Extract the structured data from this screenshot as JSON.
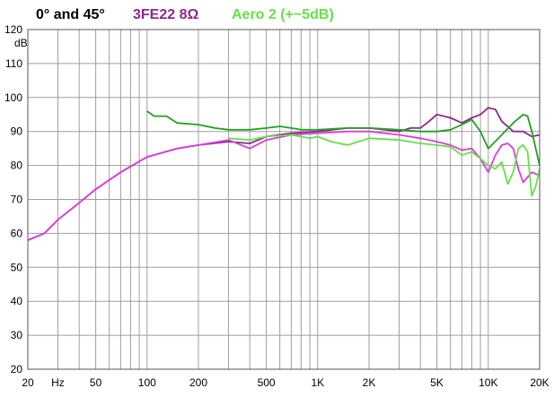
{
  "chart_data": {
    "type": "line",
    "title": "0° and 45°",
    "ylabel": "dB",
    "xscale": "log",
    "xlim": [
      20,
      20000
    ],
    "ylim": [
      20,
      120
    ],
    "grid": true,
    "legend": "top",
    "x_tick_labels": [
      {
        "value": 20,
        "label": "20"
      },
      {
        "value": 30,
        "label": "Hz"
      },
      {
        "value": 50,
        "label": "50"
      },
      {
        "value": 100,
        "label": "100"
      },
      {
        "value": 200,
        "label": "200"
      },
      {
        "value": 500,
        "label": "500"
      },
      {
        "value": 1000,
        "label": "1K"
      },
      {
        "value": 2000,
        "label": "2K"
      },
      {
        "value": 5000,
        "label": "5K"
      },
      {
        "value": 10000,
        "label": "10K"
      },
      {
        "value": 20000,
        "label": "20K"
      }
    ],
    "y_ticks": [
      20,
      30,
      40,
      50,
      60,
      70,
      80,
      90,
      100,
      110,
      120
    ],
    "series": [
      {
        "name": "3FE22 8Ω",
        "color": "#8b2a8a",
        "points": [
          [
            20,
            58
          ],
          [
            25,
            60
          ],
          [
            30,
            64
          ],
          [
            40,
            69
          ],
          [
            50,
            73
          ],
          [
            70,
            78
          ],
          [
            100,
            82.5
          ],
          [
            150,
            85
          ],
          [
            200,
            86
          ],
          [
            300,
            87
          ],
          [
            400,
            86.5
          ],
          [
            500,
            88.5
          ],
          [
            700,
            89.5
          ],
          [
            1000,
            90
          ],
          [
            1500,
            91
          ],
          [
            2000,
            91
          ],
          [
            2500,
            90.5
          ],
          [
            3000,
            90
          ],
          [
            3500,
            91
          ],
          [
            4000,
            91
          ],
          [
            4500,
            93
          ],
          [
            5000,
            95
          ],
          [
            6000,
            94
          ],
          [
            7000,
            92.5
          ],
          [
            8000,
            94
          ],
          [
            9000,
            95
          ],
          [
            10000,
            97
          ],
          [
            11000,
            96.5
          ],
          [
            12000,
            93
          ],
          [
            14000,
            90
          ],
          [
            16000,
            90
          ],
          [
            18000,
            88.5
          ],
          [
            20000,
            89
          ]
        ]
      },
      {
        "name": "3FE22 8Ω",
        "color": "#dc3cdc",
        "points": [
          [
            20,
            58
          ],
          [
            25,
            60
          ],
          [
            30,
            64
          ],
          [
            40,
            69
          ],
          [
            50,
            73
          ],
          [
            70,
            78
          ],
          [
            100,
            82.5
          ],
          [
            150,
            85
          ],
          [
            200,
            86
          ],
          [
            300,
            87.5
          ],
          [
            400,
            85
          ],
          [
            500,
            87.5
          ],
          [
            700,
            89
          ],
          [
            1000,
            89.5
          ],
          [
            1500,
            90
          ],
          [
            2000,
            90
          ],
          [
            3000,
            89
          ],
          [
            4000,
            88
          ],
          [
            5000,
            87
          ],
          [
            6000,
            86
          ],
          [
            7000,
            84.5
          ],
          [
            8000,
            85
          ],
          [
            9000,
            82
          ],
          [
            10000,
            78
          ],
          [
            11000,
            83
          ],
          [
            12000,
            86
          ],
          [
            13000,
            86.5
          ],
          [
            14000,
            85
          ],
          [
            15000,
            79
          ],
          [
            16000,
            75
          ],
          [
            18000,
            78
          ],
          [
            20000,
            77
          ]
        ]
      },
      {
        "name": "Aero 2 (+~5dB)",
        "color": "#22a022",
        "points": [
          [
            100,
            96
          ],
          [
            110,
            94.5
          ],
          [
            130,
            94.5
          ],
          [
            150,
            92.5
          ],
          [
            200,
            92
          ],
          [
            250,
            91
          ],
          [
            300,
            90.5
          ],
          [
            400,
            90.5
          ],
          [
            500,
            91
          ],
          [
            600,
            91.5
          ],
          [
            700,
            91
          ],
          [
            800,
            90.5
          ],
          [
            1000,
            90.5
          ],
          [
            1500,
            91
          ],
          [
            2000,
            91
          ],
          [
            3000,
            90.5
          ],
          [
            4000,
            90
          ],
          [
            5000,
            90
          ],
          [
            6000,
            90.5
          ],
          [
            7000,
            92
          ],
          [
            8000,
            93.5
          ],
          [
            9000,
            90
          ],
          [
            10000,
            85
          ],
          [
            12000,
            89
          ],
          [
            14000,
            92.5
          ],
          [
            16000,
            95
          ],
          [
            17000,
            94.5
          ],
          [
            18000,
            90
          ],
          [
            20000,
            80
          ]
        ]
      },
      {
        "name": "Aero 2 (+~5dB)",
        "color": "#66e04a",
        "points": [
          [
            300,
            88
          ],
          [
            400,
            87.5
          ],
          [
            500,
            88.5
          ],
          [
            700,
            89
          ],
          [
            900,
            88
          ],
          [
            1000,
            88.5
          ],
          [
            1200,
            87
          ],
          [
            1500,
            86
          ],
          [
            2000,
            88
          ],
          [
            3000,
            87.5
          ],
          [
            4000,
            86.5
          ],
          [
            5000,
            86
          ],
          [
            6000,
            85.5
          ],
          [
            7000,
            83
          ],
          [
            8000,
            84
          ],
          [
            9000,
            82
          ],
          [
            10000,
            80
          ],
          [
            11000,
            79
          ],
          [
            12000,
            81
          ],
          [
            13000,
            74.5
          ],
          [
            14000,
            78
          ],
          [
            15000,
            85
          ],
          [
            16000,
            86
          ],
          [
            17000,
            84
          ],
          [
            18000,
            71
          ],
          [
            19000,
            74
          ],
          [
            20000,
            79
          ]
        ]
      }
    ]
  },
  "legend_labels": {
    "title": "0° and 45°",
    "s1": "3FE22 8Ω",
    "s2": "Aero 2 (+~5dB)"
  },
  "colors": {
    "title": "#000000",
    "legend_3fe22": "#8b2a8a",
    "legend_aero": "#66e04a",
    "grid": "#9e9e9e",
    "frame": "#555555"
  }
}
